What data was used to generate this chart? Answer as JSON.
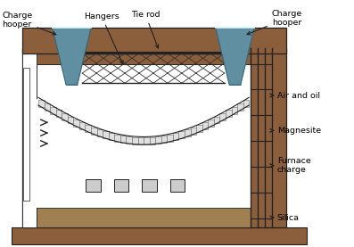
{
  "bg_color": "#ffffff",
  "wall_color": "#8B5E3C",
  "inner_color": "#ffffff",
  "hopper_color": "#5f8fa0",
  "hopper_edge": "#336677",
  "arch_color": "#e0e0e0",
  "arch_edge": "#666666",
  "orange_color": "#e8600a",
  "silica_color": "#a08050",
  "dark": "#222222",
  "grid_color": "#444444",
  "labels": {
    "charge_hopper_left": "Charge\nhooper",
    "hangers": "Hangers",
    "tie_rod": "Tie rod",
    "charge_hopper_right": "Charge\nhooper",
    "air_and_oil": "Air and oil",
    "magnesite": "Magnesite",
    "furnace_charge": "Furnace\ncharge",
    "silica": "Silica"
  },
  "figsize": [
    3.97,
    2.77
  ],
  "dpi": 100
}
